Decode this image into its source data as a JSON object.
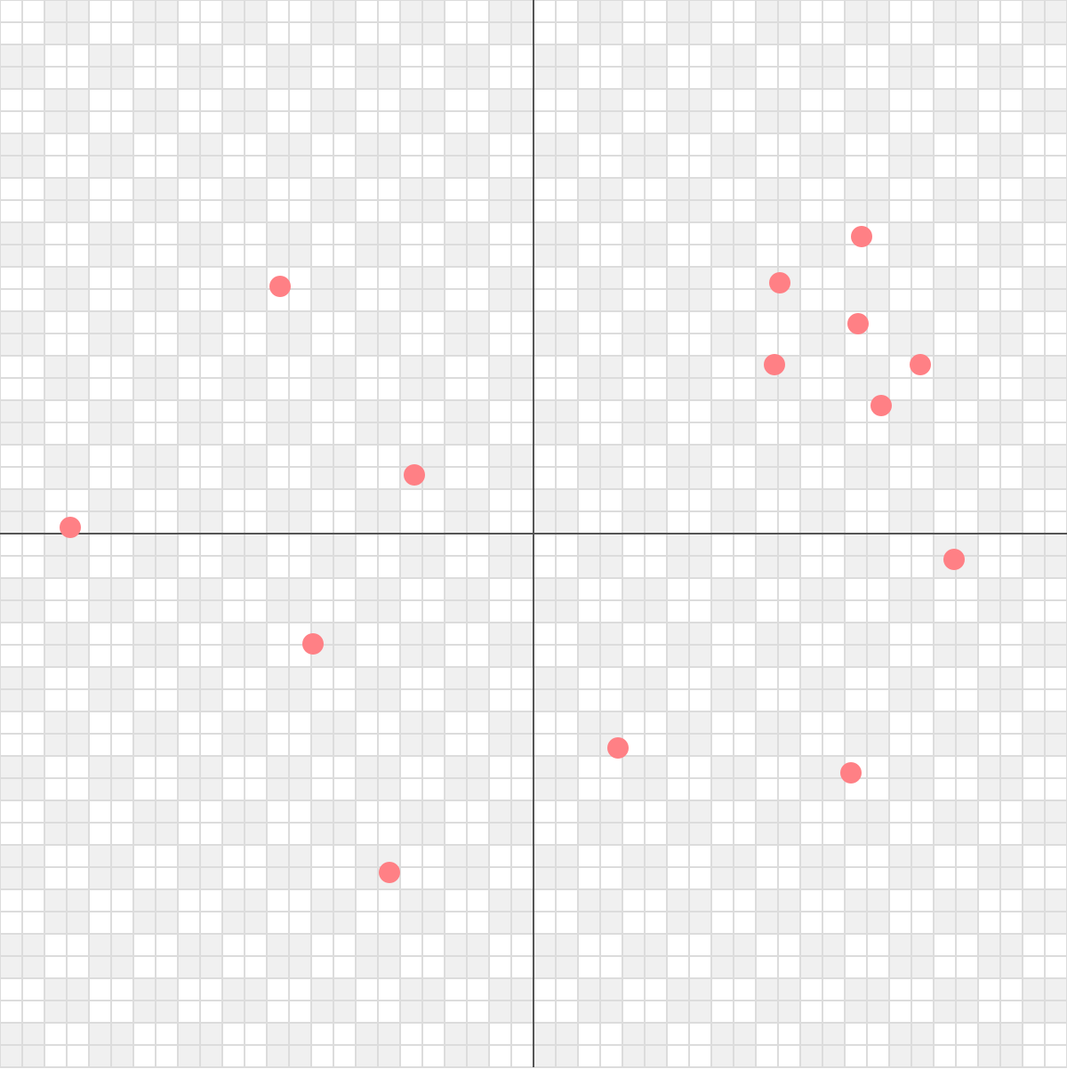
{
  "chart_data": {
    "type": "scatter",
    "title": "",
    "xlabel": "",
    "ylabel": "",
    "xlim": [
      -12,
      12
    ],
    "ylim": [
      -12,
      12
    ],
    "grid": true,
    "grid_step": 0.5,
    "checker_step": 1,
    "legend": "none",
    "series": [
      {
        "points": [
          {
            "x": -5.7,
            "y": 5.56
          },
          {
            "x": -2.68,
            "y": 1.32
          },
          {
            "x": -10.42,
            "y": 0.14
          },
          {
            "x": -4.96,
            "y": -2.48
          },
          {
            "x": -3.24,
            "y": -7.62
          },
          {
            "x": 7.38,
            "y": 6.68
          },
          {
            "x": 5.54,
            "y": 5.64
          },
          {
            "x": 7.3,
            "y": 4.72
          },
          {
            "x": 5.42,
            "y": 3.8
          },
          {
            "x": 8.7,
            "y": 3.8
          },
          {
            "x": 7.82,
            "y": 2.88
          },
          {
            "x": 9.46,
            "y": -0.58
          },
          {
            "x": 1.9,
            "y": -4.82
          },
          {
            "x": 7.14,
            "y": -5.38
          }
        ]
      }
    ]
  },
  "colors": {
    "background": "#ffffff",
    "checker": "#f0f0f0",
    "grid": "#dcdcdc",
    "axis": "#555555",
    "point": "#ff8085"
  }
}
